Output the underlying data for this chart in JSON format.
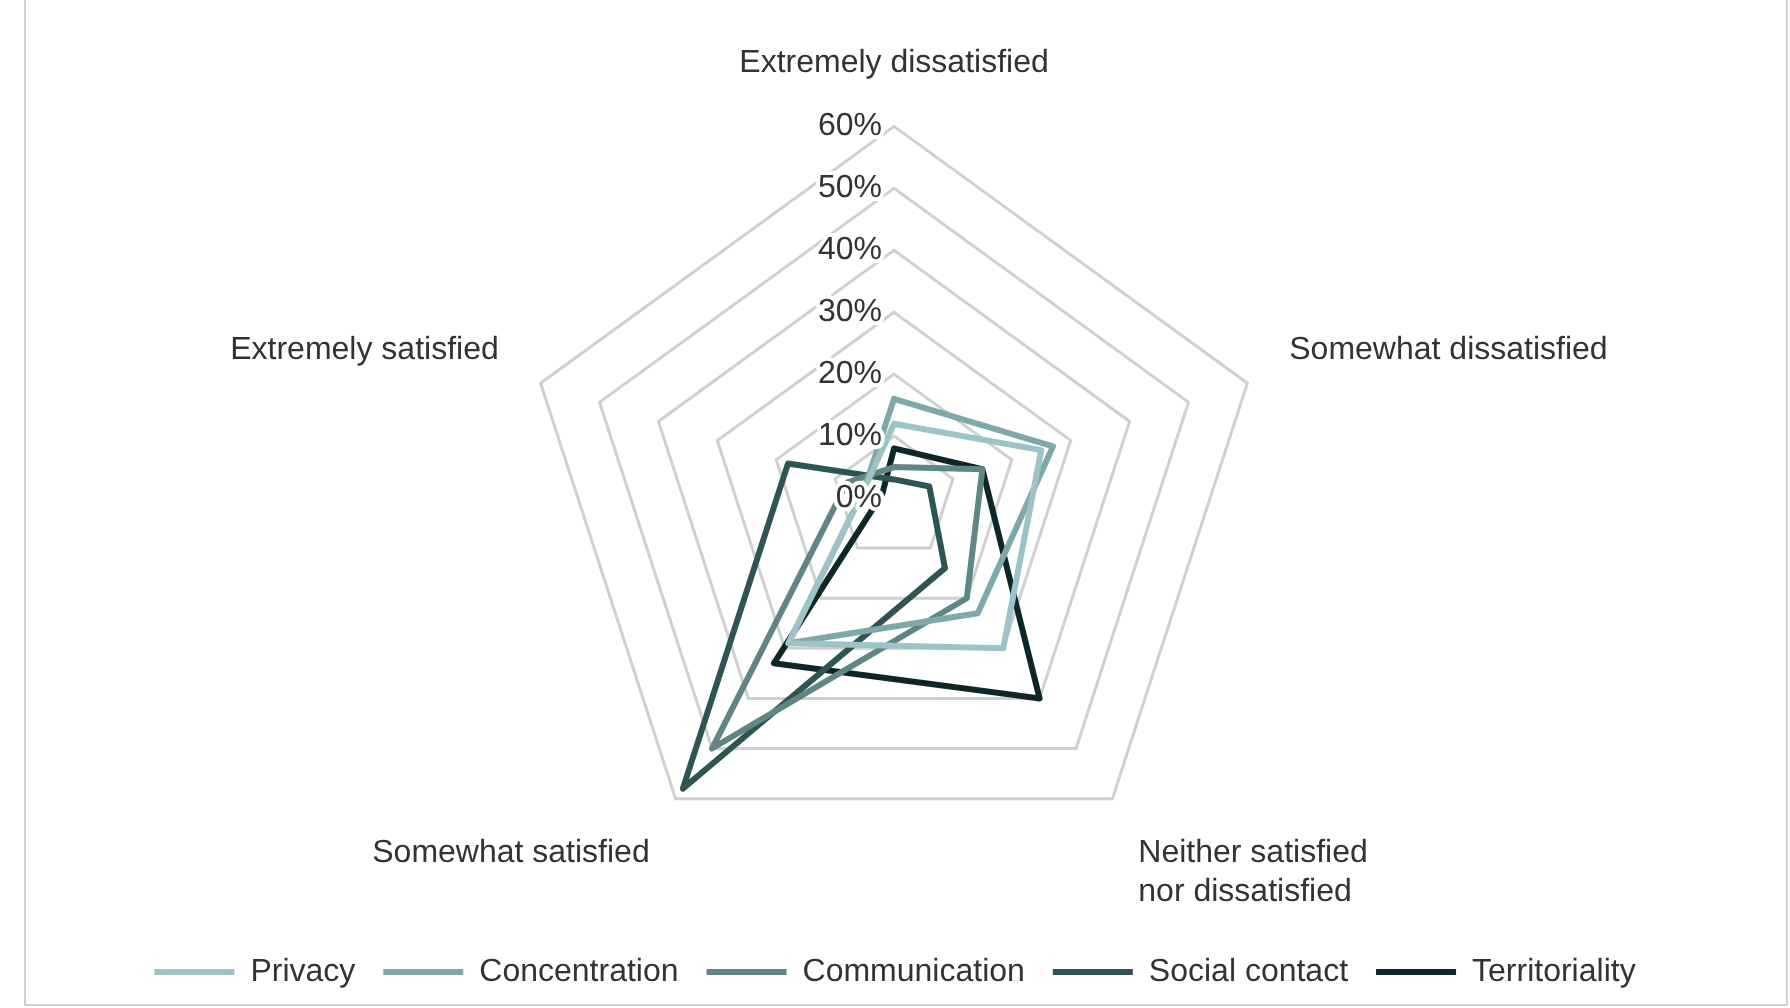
{
  "chart_data": {
    "type": "radar",
    "categories": [
      "Extremely dissatisfied",
      "Somewhat dissatisfied",
      "Neither satisfied nor dissatisfied",
      "Somewhat satisfied",
      "Extremely satisfied"
    ],
    "series": [
      {
        "name": "Privacy",
        "color": "#9dc3c8",
        "values": [
          12,
          25,
          30,
          29,
          5
        ]
      },
      {
        "name": "Concentration",
        "color": "#7fa8aa",
        "values": [
          16,
          27,
          23,
          29,
          5
        ]
      },
      {
        "name": "Communication",
        "color": "#5f8584",
        "values": [
          5,
          15,
          20,
          50,
          8
        ]
      },
      {
        "name": "Social contact",
        "color": "#2f5552",
        "values": [
          3,
          6,
          14,
          58,
          18
        ]
      },
      {
        "name": "Territoriality",
        "color": "#0e2626",
        "values": [
          8,
          15,
          40,
          33,
          2
        ]
      }
    ],
    "ylim": [
      0,
      60
    ],
    "yticks": [
      {
        "value": 0,
        "label": "0%"
      },
      {
        "value": 10,
        "label": "10%"
      },
      {
        "value": 20,
        "label": "20%"
      },
      {
        "value": 30,
        "label": "30%"
      },
      {
        "value": 40,
        "label": "40%"
      },
      {
        "value": 50,
        "label": "50%"
      },
      {
        "value": 60,
        "label": "60%"
      }
    ],
    "grid": true,
    "legend": "bottom",
    "marker": "none",
    "line_style": "solid"
  }
}
